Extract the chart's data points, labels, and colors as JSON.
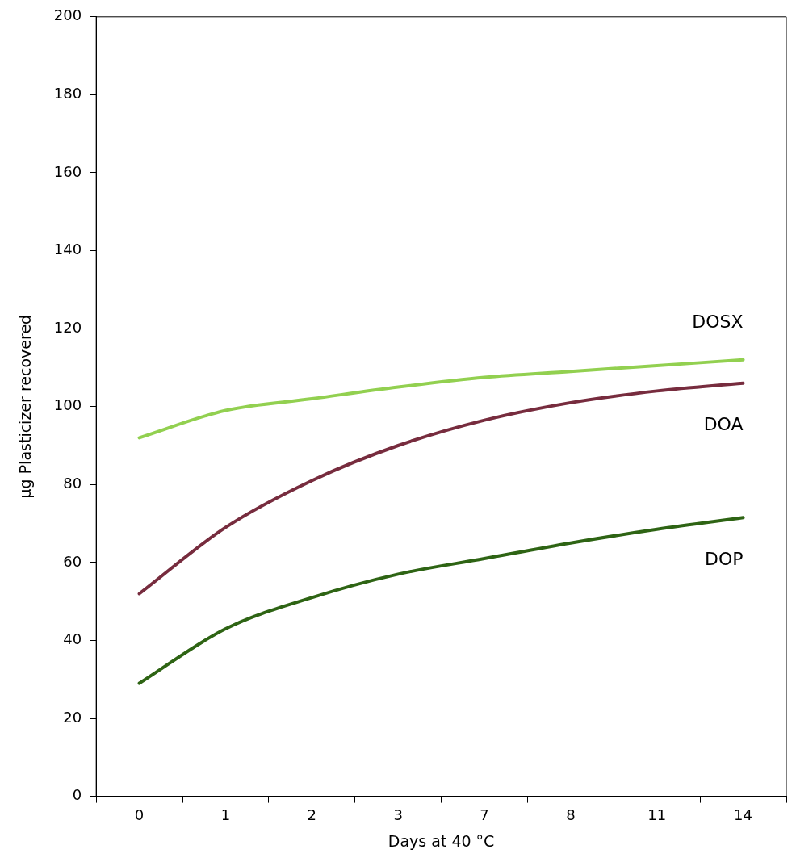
{
  "chart_data": {
    "type": "line",
    "xlabel": "Days at 40 °C",
    "ylabel": "µg Plasticizer recovered",
    "categories": [
      "0",
      "1",
      "2",
      "3",
      "7",
      "8",
      "11",
      "14"
    ],
    "ylim": [
      0,
      200
    ],
    "yticks": [
      0,
      20,
      40,
      60,
      80,
      100,
      120,
      140,
      160,
      180,
      200
    ],
    "series": [
      {
        "name": "DOSX",
        "color": "#92d050",
        "values": [
          92,
          99,
          102,
          105,
          107.5,
          109,
          110.5,
          112
        ]
      },
      {
        "name": "DOA",
        "color": "#772c3e",
        "values": [
          52,
          69,
          81,
          90,
          96.5,
          101,
          104,
          106
        ]
      },
      {
        "name": "DOP",
        "color": "#2e6414",
        "values": [
          29,
          43,
          51,
          57,
          61,
          65,
          68.5,
          71.5
        ]
      }
    ]
  }
}
